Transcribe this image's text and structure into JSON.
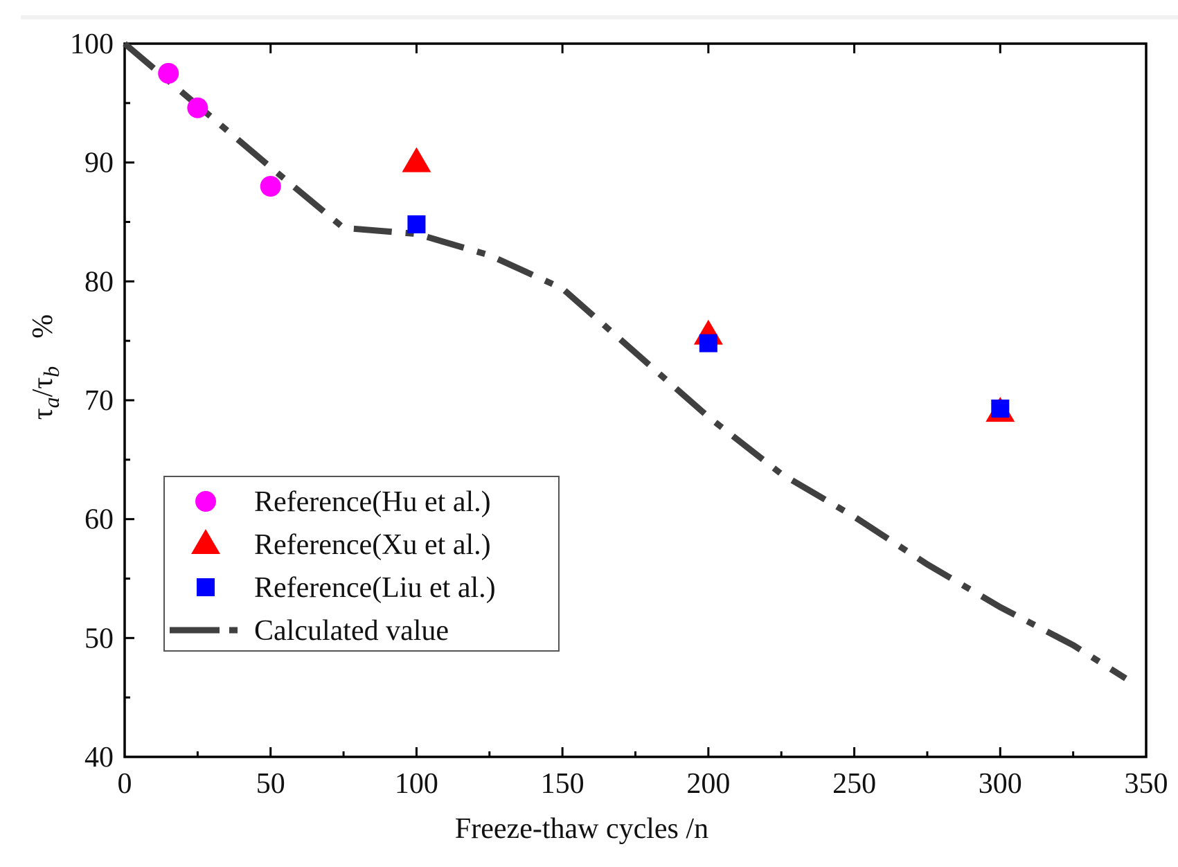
{
  "chart_data": {
    "type": "scatter",
    "xlabel": "Freeze-thaw cycles /n",
    "ylabel": {
      "tau": "τ",
      "sub_a": "a",
      "slash": "/",
      "sub_b": "b",
      "percent": "%"
    },
    "xlim": [
      0,
      350
    ],
    "ylim": [
      40,
      100
    ],
    "x_ticks": [
      {
        "value": 0,
        "label": "0"
      },
      {
        "value": 50,
        "label": "50"
      },
      {
        "value": 100,
        "label": "100"
      },
      {
        "value": 150,
        "label": "150"
      },
      {
        "value": 200,
        "label": "200"
      },
      {
        "value": 250,
        "label": "250"
      },
      {
        "value": 300,
        "label": "300"
      },
      {
        "value": 350,
        "label": "350"
      }
    ],
    "y_ticks": [
      {
        "value": 40,
        "label": "40"
      },
      {
        "value": 50,
        "label": "50"
      },
      {
        "value": 60,
        "label": "60"
      },
      {
        "value": 70,
        "label": "70"
      },
      {
        "value": 80,
        "label": "80"
      },
      {
        "value": 90,
        "label": "90"
      },
      {
        "value": 100,
        "label": "100"
      }
    ],
    "grid": false,
    "legend_position": "bottom-left",
    "series": [
      {
        "name": "Reference(Hu et al.)",
        "marker": "circle",
        "color": "#ff00ff",
        "points": [
          [
            15,
            97.5
          ],
          [
            25,
            94.6
          ],
          [
            50,
            88.0
          ]
        ]
      },
      {
        "name": "Reference(Xu et al.)",
        "marker": "triangle",
        "color": "#ff0000",
        "points": [
          [
            100,
            90.0
          ],
          [
            200,
            75.5
          ],
          [
            300,
            69.0
          ]
        ]
      },
      {
        "name": "Reference(Liu et al.)",
        "marker": "square",
        "color": "#0000ff",
        "points": [
          [
            100,
            84.8
          ],
          [
            200,
            74.8
          ],
          [
            300,
            69.3
          ]
        ]
      },
      {
        "name": "Calculated value",
        "marker": "dash-dot-line",
        "color": "#404040",
        "points": [
          [
            0,
            100
          ],
          [
            25,
            94.8
          ],
          [
            50,
            89.6
          ],
          [
            75,
            84.5
          ],
          [
            100,
            84.0
          ],
          [
            125,
            82.2
          ],
          [
            150,
            79.4
          ],
          [
            175,
            74.0
          ],
          [
            200,
            68.6
          ],
          [
            225,
            63.8
          ],
          [
            250,
            60.2
          ],
          [
            275,
            56.2
          ],
          [
            300,
            52.6
          ],
          [
            325,
            49.4
          ],
          [
            343,
            46.6
          ]
        ]
      }
    ]
  }
}
